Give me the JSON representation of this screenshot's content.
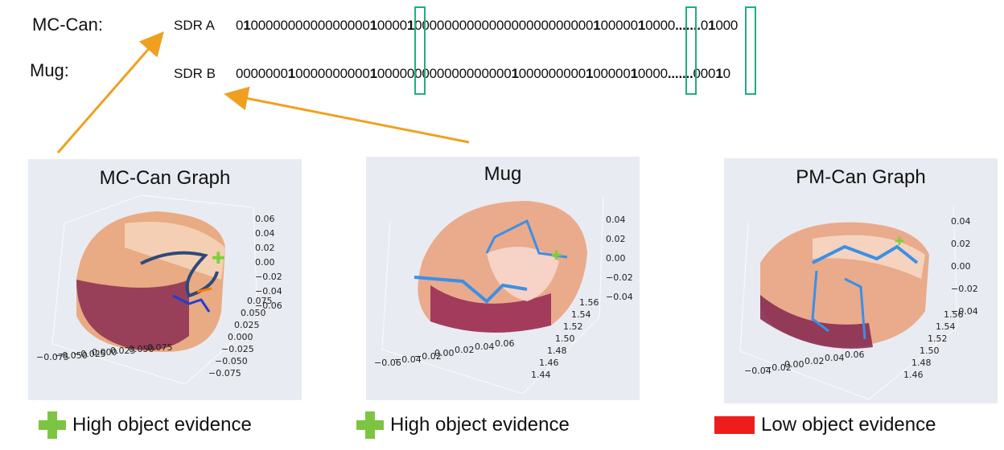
{
  "rows": [
    {
      "object_label": "MC-Can:",
      "sdr_label": "SDR A",
      "bits": [
        {
          "t": "0",
          "b": false
        },
        {
          "t": "1",
          "b": true
        },
        {
          "t": "0000000000000000",
          "b": false
        },
        {
          "t": "1",
          "b": true
        },
        {
          "t": "0000",
          "b": false
        },
        {
          "t": "1",
          "b": true
        },
        {
          "t": "000000000000000000000000",
          "b": false
        },
        {
          "t": "1",
          "b": true
        },
        {
          "t": "00000",
          "b": false
        },
        {
          "t": "1",
          "b": true
        },
        {
          "t": "0000",
          "b": false
        },
        {
          "t": ".......",
          "b": true
        },
        {
          "t": "0",
          "b": false
        },
        {
          "t": "1",
          "b": true
        },
        {
          "t": "000",
          "b": false
        }
      ]
    },
    {
      "object_label": "Mug:",
      "sdr_label": "SDR B",
      "bits": [
        {
          "t": "0000000",
          "b": false
        },
        {
          "t": "1",
          "b": true
        },
        {
          "t": "0000000000",
          "b": false
        },
        {
          "t": "1",
          "b": true
        },
        {
          "t": "000000000000000000",
          "b": false
        },
        {
          "t": "1",
          "b": true
        },
        {
          "t": "000000000",
          "b": false
        },
        {
          "t": "1",
          "b": true
        },
        {
          "t": "00000",
          "b": false
        },
        {
          "t": "1",
          "b": true
        },
        {
          "t": "0000",
          "b": false
        },
        {
          "t": ".......",
          "b": true
        },
        {
          "t": "000",
          "b": false
        },
        {
          "t": "1",
          "b": true
        },
        {
          "t": "0",
          "b": false
        }
      ]
    }
  ],
  "panels": [
    {
      "title": "MC-Can Graph",
      "z_ticks": [
        "0.06",
        "0.04",
        "0.02",
        "0.00",
        "−0.02",
        "−0.04",
        "−0.06"
      ],
      "x_ticks": [
        "−0.075",
        "−0.050",
        "−0.025",
        "0.000",
        "0.025",
        "0.050",
        "0.075"
      ],
      "y_ticks": [
        "0.075",
        "0.050",
        "0.025",
        "0.000",
        "−0.025",
        "−0.050",
        "−0.075"
      ],
      "legend_icon": "green-plus-icon",
      "legend_color": "#7dc443",
      "legend": "High object evidence"
    },
    {
      "title": "Mug",
      "z_ticks": [
        "0.04",
        "0.02",
        "0.00",
        "−0.02",
        "−0.04"
      ],
      "x_ticks": [
        "−0.06",
        "−0.04",
        "−0.02",
        "0.00",
        "0.02",
        "0.04",
        "0.06"
      ],
      "y_ticks": [
        "1.56",
        "1.54",
        "1.52",
        "1.50",
        "1.48",
        "1.46",
        "1.44"
      ],
      "legend_icon": "green-plus-icon",
      "legend_color": "#7dc443",
      "legend": "High object evidence"
    },
    {
      "title": "PM-Can Graph",
      "z_ticks": [
        "0.04",
        "0.02",
        "0.00",
        "−0.02",
        "−0.04"
      ],
      "x_ticks": [
        "−0.04",
        "−0.02",
        "0.00",
        "0.02",
        "0.04",
        "0.06"
      ],
      "y_ticks": [
        "1.56",
        "1.54",
        "1.52",
        "1.50",
        "1.48",
        "1.46"
      ],
      "legend_icon": "red-rectangle-icon",
      "legend_color": "#ee1c1c",
      "legend": "Low object evidence"
    }
  ],
  "colors": {
    "highlight_box": "#1fb07a",
    "arrow": "#f0a020",
    "panel_bg": "#e9ebf2"
  }
}
